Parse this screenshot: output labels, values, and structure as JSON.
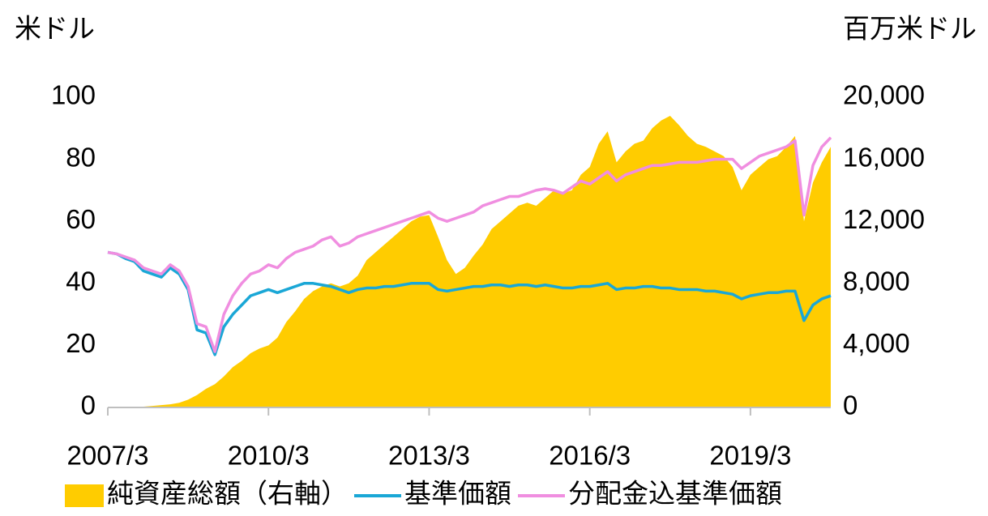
{
  "chart_data": {
    "type": "line",
    "axis_label_left": "米ドル",
    "axis_label_right": "百万米ドル",
    "categories": [
      "2007/3",
      null,
      null,
      null,
      null,
      null,
      null,
      null,
      null,
      null,
      null,
      null,
      null,
      null,
      null,
      null,
      null,
      null,
      "2010/3",
      null,
      null,
      null,
      null,
      null,
      null,
      null,
      null,
      null,
      null,
      null,
      null,
      null,
      null,
      null,
      null,
      null,
      "2013/3",
      null,
      null,
      null,
      null,
      null,
      null,
      null,
      null,
      null,
      null,
      null,
      null,
      null,
      null,
      null,
      null,
      null,
      "2016/3",
      null,
      null,
      null,
      null,
      null,
      null,
      null,
      null,
      null,
      null,
      null,
      null,
      null,
      null,
      null,
      null,
      null,
      "2019/3",
      null,
      null,
      null,
      null,
      null,
      null,
      null,
      null,
      null
    ],
    "series": [
      {
        "name": "純資産総額（右軸）",
        "color": "#ffcc00",
        "kind": "area",
        "axis": "y2",
        "values": [
          0,
          0,
          0,
          20,
          50,
          100,
          150,
          200,
          300,
          500,
          800,
          1200,
          1500,
          2000,
          2600,
          3000,
          3500,
          3800,
          4000,
          4500,
          5500,
          6200,
          7000,
          7500,
          7800,
          8000,
          7800,
          8000,
          8500,
          9500,
          10000,
          10500,
          11000,
          11500,
          12000,
          12300,
          12400,
          11000,
          9500,
          8600,
          9000,
          9800,
          10500,
          11500,
          12000,
          12500,
          13000,
          13200,
          13000,
          13500,
          14000,
          13800,
          14000,
          15000,
          15500,
          17000,
          17800,
          15800,
          16500,
          17000,
          17200,
          18000,
          18500,
          18800,
          18200,
          17500,
          17000,
          16800,
          16500,
          16200,
          15500,
          14000,
          15000,
          15500,
          16000,
          16200,
          16800,
          17500,
          12000,
          14500,
          15800,
          16800
        ]
      },
      {
        "name": "基準価額",
        "color": "#1aa7d6",
        "kind": "line",
        "values": [
          50,
          49.5,
          48,
          47,
          44,
          43,
          42,
          45,
          43,
          38,
          25,
          24,
          17,
          26,
          30,
          33,
          36,
          37,
          38,
          37,
          38,
          39,
          40,
          40,
          39.5,
          39,
          38,
          37,
          38,
          38.5,
          38.5,
          39,
          39,
          39.5,
          40,
          40,
          40,
          38,
          37.5,
          38,
          38.5,
          39,
          39,
          39.5,
          39.5,
          39,
          39.5,
          39.5,
          39,
          39.5,
          39,
          38.5,
          38.5,
          39,
          39,
          39.5,
          40,
          38,
          38.5,
          38.5,
          39,
          39,
          38.5,
          38.5,
          38,
          38,
          38,
          37.5,
          37.5,
          37,
          36.5,
          35,
          36,
          36.5,
          37,
          37,
          37.5,
          37.5,
          28,
          33,
          35,
          36
        ]
      },
      {
        "name": "分配金込基準価額",
        "color": "#f08ee0",
        "kind": "line",
        "values": [
          50,
          49.5,
          48.5,
          47.5,
          45,
          44,
          43,
          46,
          44,
          39,
          27,
          26,
          18,
          30,
          36,
          40,
          43,
          44,
          46,
          45,
          48,
          50,
          51,
          52,
          54,
          55,
          52,
          53,
          55,
          56,
          57,
          58,
          59,
          60,
          61,
          62,
          63,
          61,
          60,
          61,
          62,
          63,
          65,
          66,
          67,
          68,
          68,
          69,
          70,
          70.5,
          70,
          69,
          71,
          73,
          72,
          74,
          76,
          73,
          75,
          76,
          77,
          78,
          78,
          78.5,
          79,
          79,
          79,
          79.5,
          80,
          80,
          80,
          77,
          79,
          81,
          82,
          83,
          84,
          86,
          62,
          78,
          84,
          87
        ]
      }
    ],
    "ylim": [
      0,
      100
    ],
    "yticks": [
      0,
      20,
      40,
      60,
      80,
      100
    ],
    "y2lim": [
      0,
      20000
    ],
    "y2ticks": [
      0,
      {
        "value": 4000,
        "label": "4,000"
      },
      {
        "value": 8000,
        "label": "8,000"
      },
      {
        "value": 12000,
        "label": "12,000"
      },
      {
        "value": 16000,
        "label": "16,000"
      },
      {
        "value": 20000,
        "label": "20,000"
      }
    ],
    "grid": false,
    "legend": "bottom"
  }
}
